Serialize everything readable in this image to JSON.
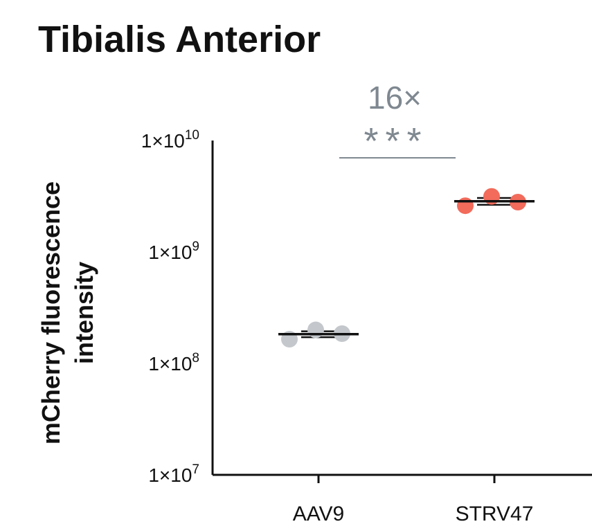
{
  "chart_data": {
    "type": "scatter",
    "title": "Tibialis Anterior",
    "ylabel_line1": "mCherry fluorescence",
    "ylabel_line2": "intensity",
    "xlabel": "",
    "y_scale": "log",
    "ylim": [
      10000000,
      10000000000
    ],
    "y_ticks": [
      {
        "value": 10000000,
        "base": "1×10",
        "exp": "7"
      },
      {
        "value": 100000000,
        "base": "1×10",
        "exp": "8"
      },
      {
        "value": 1000000000,
        "base": "1×10",
        "exp": "9"
      },
      {
        "value": 10000000000,
        "base": "1×10",
        "exp": "10"
      }
    ],
    "grid": true,
    "categories": [
      "AAV9",
      "STRV47"
    ],
    "series": [
      {
        "category": "AAV9",
        "color": "#c4c8cc",
        "points": [
          165000000,
          200000000,
          185000000
        ],
        "mean": 183000000,
        "error": [
          172000000,
          194000000
        ]
      },
      {
        "category": "STRV47",
        "color": "#f26b5b",
        "points": [
          2600000000,
          3150000000,
          2800000000
        ],
        "mean": 2850000000,
        "error": [
          2650000000,
          3050000000
        ]
      }
    ],
    "annotation": {
      "fold_change": "16×",
      "significance": "***"
    }
  },
  "colors": {
    "axis": "#111111",
    "gridline": "#9a9a9a",
    "annotation": "#7f8890",
    "aav9": "#c4c8cc",
    "strv47": "#f26b5b"
  }
}
